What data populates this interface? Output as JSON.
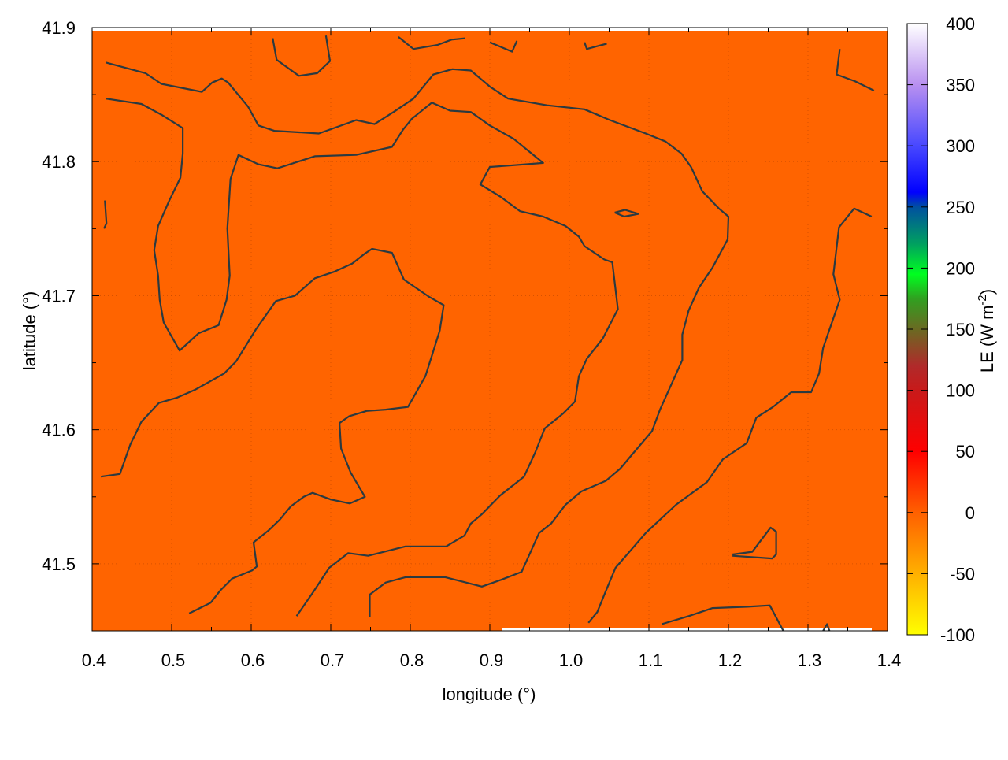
{
  "chart_data": {
    "type": "heatmap",
    "xlabel": "longitude (°)",
    "ylabel": "latitude (°)",
    "colorbar_label": "LE (W m",
    "colorbar_label_sup": "-2",
    "colorbar_label_end": ")",
    "xlim": [
      0.4,
      1.4
    ],
    "ylim": [
      41.45,
      41.9
    ],
    "xticks": [
      "0.4",
      "0.5",
      "0.6",
      "0.7",
      "0.8",
      "0.9",
      "1.0",
      "1.1",
      "1.2",
      "1.3",
      "1.4"
    ],
    "yticks": [
      "41.5",
      "41.6",
      "41.7",
      "41.8",
      "41.9"
    ],
    "cbrange": [
      -100,
      400
    ],
    "cbticks": [
      "-100",
      "-50",
      "0",
      "50",
      "100",
      "150",
      "200",
      "250",
      "300",
      "350",
      "400"
    ],
    "grid": true,
    "field_value_approx": 5,
    "field_color": "#ff6400",
    "contour_color": "#2b3a40",
    "palette": [
      [
        -100,
        "#ffff00"
      ],
      [
        -50,
        "#ffb000"
      ],
      [
        0,
        "#ff6000"
      ],
      [
        50,
        "#ff0000"
      ],
      [
        100,
        "#c81a1a"
      ],
      [
        120,
        "#b02a2a"
      ],
      [
        150,
        "#6a6a22"
      ],
      [
        175,
        "#30a020"
      ],
      [
        195,
        "#00ff20"
      ],
      [
        220,
        "#00a060"
      ],
      [
        250,
        "#0050a0"
      ],
      [
        262,
        "#0000ff"
      ],
      [
        300,
        "#4848ff"
      ],
      [
        350,
        "#b890f0"
      ],
      [
        400,
        "#ffffff"
      ]
    ],
    "contours": [
      [
        [
          0.417,
          41.874
        ],
        [
          0.467,
          41.866
        ],
        [
          0.487,
          41.858
        ],
        [
          0.538,
          41.852
        ],
        [
          0.551,
          41.859
        ],
        [
          0.563,
          41.862
        ],
        [
          0.571,
          41.859
        ],
        [
          0.596,
          41.841
        ],
        [
          0.609,
          41.827
        ],
        [
          0.629,
          41.823
        ],
        [
          0.685,
          41.821
        ],
        [
          0.732,
          41.831
        ],
        [
          0.755,
          41.828
        ],
        [
          0.779,
          41.837
        ],
        [
          0.804,
          41.847
        ],
        [
          0.829,
          41.865
        ],
        [
          0.853,
          41.869
        ],
        [
          0.876,
          41.868
        ],
        [
          0.9,
          41.856
        ],
        [
          0.923,
          41.847
        ],
        [
          0.972,
          41.842
        ],
        [
          1.019,
          41.839
        ],
        [
          1.051,
          41.831
        ],
        [
          1.096,
          41.821
        ],
        [
          1.121,
          41.815
        ],
        [
          1.141,
          41.806
        ],
        [
          1.153,
          41.796
        ],
        [
          1.167,
          41.778
        ],
        [
          1.188,
          41.765
        ],
        [
          1.2,
          41.759
        ],
        [
          1.199,
          41.742
        ],
        [
          1.18,
          41.721
        ],
        [
          1.163,
          41.706
        ],
        [
          1.15,
          41.689
        ],
        [
          1.142,
          41.671
        ],
        [
          1.142,
          41.652
        ],
        [
          1.114,
          41.615
        ],
        [
          1.104,
          41.599
        ],
        [
          1.081,
          41.583
        ],
        [
          1.064,
          41.571
        ],
        [
          1.046,
          41.562
        ],
        [
          1.015,
          41.554
        ],
        [
          0.995,
          41.544
        ],
        [
          0.977,
          41.53
        ],
        [
          0.962,
          41.523
        ],
        [
          0.94,
          41.494
        ],
        [
          0.914,
          41.488
        ],
        [
          0.89,
          41.483
        ],
        [
          0.844,
          41.49
        ],
        [
          0.794,
          41.49
        ],
        [
          0.769,
          41.486
        ],
        [
          0.749,
          41.477
        ],
        [
          0.749,
          41.46
        ]
      ],
      [
        [
          0.417,
          41.847
        ],
        [
          0.462,
          41.843
        ],
        [
          0.487,
          41.835
        ],
        [
          0.514,
          41.825
        ],
        [
          0.514,
          41.806
        ],
        [
          0.511,
          41.788
        ],
        [
          0.497,
          41.771
        ],
        [
          0.483,
          41.752
        ],
        [
          0.478,
          41.734
        ],
        [
          0.483,
          41.715
        ],
        [
          0.485,
          41.697
        ],
        [
          0.49,
          41.68
        ],
        [
          0.51,
          41.659
        ],
        [
          0.534,
          41.672
        ],
        [
          0.559,
          41.678
        ],
        [
          0.569,
          41.697
        ],
        [
          0.573,
          41.715
        ],
        [
          0.57,
          41.75
        ],
        [
          0.574,
          41.787
        ],
        [
          0.584,
          41.805
        ],
        [
          0.609,
          41.798
        ],
        [
          0.633,
          41.795
        ],
        [
          0.68,
          41.804
        ],
        [
          0.732,
          41.805
        ],
        [
          0.777,
          41.811
        ],
        [
          0.791,
          41.824
        ],
        [
          0.802,
          41.832
        ],
        [
          0.827,
          41.844
        ],
        [
          0.85,
          41.838
        ],
        [
          0.876,
          41.837
        ],
        [
          0.9,
          41.827
        ],
        [
          0.93,
          41.817
        ],
        [
          0.967,
          41.799
        ],
        [
          0.923,
          41.797
        ],
        [
          0.9,
          41.796
        ],
        [
          0.888,
          41.783
        ],
        [
          0.913,
          41.774
        ],
        [
          0.938,
          41.763
        ],
        [
          0.967,
          41.759
        ],
        [
          0.995,
          41.752
        ],
        [
          1.012,
          41.744
        ],
        [
          1.019,
          41.737
        ],
        [
          1.044,
          41.727
        ],
        [
          1.054,
          41.725
        ],
        [
          1.061,
          41.69
        ],
        [
          1.042,
          41.668
        ],
        [
          1.022,
          41.653
        ],
        [
          1.012,
          41.64
        ],
        [
          1.007,
          41.621
        ],
        [
          0.992,
          41.612
        ],
        [
          0.969,
          41.601
        ],
        [
          0.957,
          41.583
        ],
        [
          0.943,
          41.565
        ],
        [
          0.913,
          41.551
        ],
        [
          0.89,
          41.537
        ],
        [
          0.876,
          41.53
        ],
        [
          0.868,
          41.521
        ],
        [
          0.845,
          41.513
        ],
        [
          0.794,
          41.513
        ],
        [
          0.747,
          41.506
        ],
        [
          0.722,
          41.508
        ],
        [
          0.698,
          41.497
        ],
        [
          0.678,
          41.479
        ],
        [
          0.657,
          41.461
        ]
      ],
      [
        [
          0.411,
          41.565
        ],
        [
          0.435,
          41.567
        ],
        [
          0.448,
          41.589
        ],
        [
          0.462,
          41.606
        ],
        [
          0.484,
          41.62
        ],
        [
          0.507,
          41.624
        ],
        [
          0.53,
          41.63
        ],
        [
          0.566,
          41.642
        ],
        [
          0.581,
          41.651
        ],
        [
          0.606,
          41.675
        ],
        [
          0.631,
          41.696
        ],
        [
          0.655,
          41.7
        ],
        [
          0.68,
          41.713
        ],
        [
          0.705,
          41.718
        ],
        [
          0.727,
          41.724
        ],
        [
          0.742,
          41.731
        ],
        [
          0.752,
          41.735
        ],
        [
          0.777,
          41.732
        ],
        [
          0.792,
          41.712
        ],
        [
          0.824,
          41.699
        ],
        [
          0.842,
          41.693
        ],
        [
          0.837,
          41.674
        ],
        [
          0.827,
          41.655
        ],
        [
          0.819,
          41.64
        ],
        [
          0.797,
          41.617
        ],
        [
          0.769,
          41.615
        ],
        [
          0.745,
          41.614
        ],
        [
          0.723,
          41.61
        ],
        [
          0.711,
          41.605
        ],
        [
          0.713,
          41.586
        ],
        [
          0.725,
          41.568
        ],
        [
          0.743,
          41.55
        ],
        [
          0.724,
          41.545
        ],
        [
          0.7,
          41.548
        ],
        [
          0.677,
          41.553
        ],
        [
          0.666,
          41.55
        ],
        [
          0.65,
          41.543
        ],
        [
          0.636,
          41.533
        ],
        [
          0.622,
          41.525
        ],
        [
          0.603,
          41.516
        ],
        [
          0.607,
          41.498
        ],
        [
          0.601,
          41.495
        ],
        [
          0.576,
          41.489
        ],
        [
          0.561,
          41.48
        ],
        [
          0.549,
          41.471
        ],
        [
          0.522,
          41.463
        ]
      ],
      [
        [
          0.627,
          41.892
        ],
        [
          0.632,
          41.876
        ],
        [
          0.66,
          41.864
        ],
        [
          0.683,
          41.866
        ],
        [
          0.699,
          41.875
        ],
        [
          0.694,
          41.894
        ]
      ],
      [
        [
          0.785,
          41.893
        ],
        [
          0.804,
          41.884
        ],
        [
          0.834,
          41.887
        ],
        [
          0.852,
          41.891
        ],
        [
          0.869,
          41.892
        ]
      ],
      [
        [
          0.9,
          41.889
        ],
        [
          0.928,
          41.882
        ],
        [
          0.934,
          41.89
        ]
      ],
      [
        [
          1.019,
          41.889
        ],
        [
          1.022,
          41.884
        ],
        [
          1.047,
          41.888
        ]
      ],
      [
        [
          1.34,
          41.884
        ],
        [
          1.336,
          41.865
        ],
        [
          1.359,
          41.86
        ],
        [
          1.383,
          41.853
        ]
      ],
      [
        [
          0.416,
          41.771
        ],
        [
          0.418,
          41.754
        ],
        [
          0.415,
          41.75
        ]
      ],
      [
        [
          1.057,
          41.762
        ],
        [
          1.07,
          41.764
        ],
        [
          1.087,
          41.761
        ],
        [
          1.069,
          41.759
        ],
        [
          1.057,
          41.762
        ]
      ],
      [
        [
          1.38,
          41.759
        ],
        [
          1.358,
          41.765
        ],
        [
          1.339,
          41.751
        ],
        [
          1.332,
          41.716
        ],
        [
          1.34,
          41.697
        ],
        [
          1.319,
          41.661
        ],
        [
          1.314,
          41.642
        ],
        [
          1.304,
          41.628
        ],
        [
          1.279,
          41.628
        ],
        [
          1.256,
          41.617
        ],
        [
          1.235,
          41.609
        ],
        [
          1.223,
          41.59
        ],
        [
          1.193,
          41.578
        ],
        [
          1.173,
          41.561
        ],
        [
          1.134,
          41.544
        ],
        [
          1.096,
          41.523
        ],
        [
          1.058,
          41.497
        ],
        [
          1.046,
          41.48
        ],
        [
          1.035,
          41.464
        ],
        [
          1.024,
          41.456
        ]
      ],
      [
        [
          1.116,
          41.455
        ],
        [
          1.15,
          41.461
        ],
        [
          1.18,
          41.467
        ],
        [
          1.224,
          41.468
        ],
        [
          1.252,
          41.469
        ],
        [
          1.269,
          41.45
        ]
      ],
      [
        [
          1.205,
          41.507
        ],
        [
          1.23,
          41.509
        ],
        [
          1.253,
          41.527
        ],
        [
          1.26,
          41.524
        ],
        [
          1.26,
          41.507
        ],
        [
          1.255,
          41.504
        ],
        [
          1.205,
          41.506
        ]
      ],
      [
        [
          1.319,
          41.45
        ],
        [
          1.324,
          41.455
        ],
        [
          1.327,
          41.45
        ]
      ]
    ]
  }
}
